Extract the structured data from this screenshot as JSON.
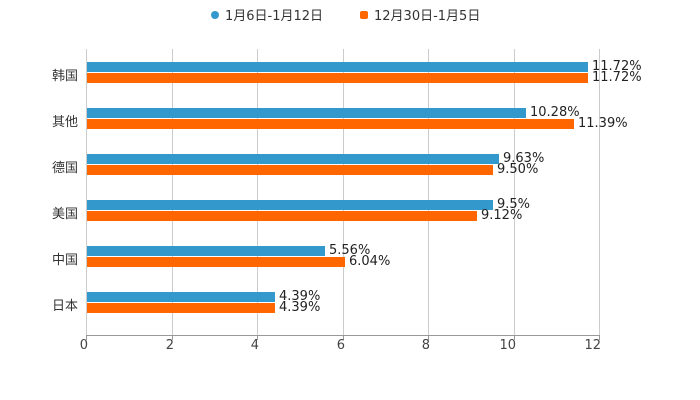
{
  "chart_data": {
    "type": "bar",
    "orientation": "horizontal",
    "title": "",
    "xlabel": "",
    "ylabel": "",
    "xlim": [
      0,
      12
    ],
    "x_ticks": [
      "0",
      "2",
      "4",
      "6",
      "8",
      "10",
      "12"
    ],
    "grid": true,
    "legend_position": "top",
    "categories": [
      "韩国",
      "其他",
      "德国",
      "美国",
      "中国",
      "日本"
    ],
    "series": [
      {
        "name": "1月6日-1月12日",
        "color": "#3399cc",
        "values": [
          11.72,
          10.28,
          9.63,
          9.5,
          5.56,
          4.39
        ],
        "labels": [
          "11.72%",
          "10.28%",
          "9.63%",
          "9.5%",
          "5.56%",
          "4.39%"
        ]
      },
      {
        "name": "12月30日-1月5日",
        "color": "#ff6600",
        "values": [
          11.72,
          11.39,
          9.5,
          9.12,
          6.04,
          4.39
        ],
        "labels": [
          "11.72%",
          "11.39%",
          "9.50%",
          "9.12%",
          "6.04%",
          "4.39%"
        ]
      }
    ]
  },
  "legend": {
    "items": [
      {
        "label": "1月6日-1月12日",
        "color": "#3399cc",
        "marker": "circle"
      },
      {
        "label": "12月30日-1月5日",
        "color": "#ff6600",
        "marker": "square"
      }
    ]
  }
}
